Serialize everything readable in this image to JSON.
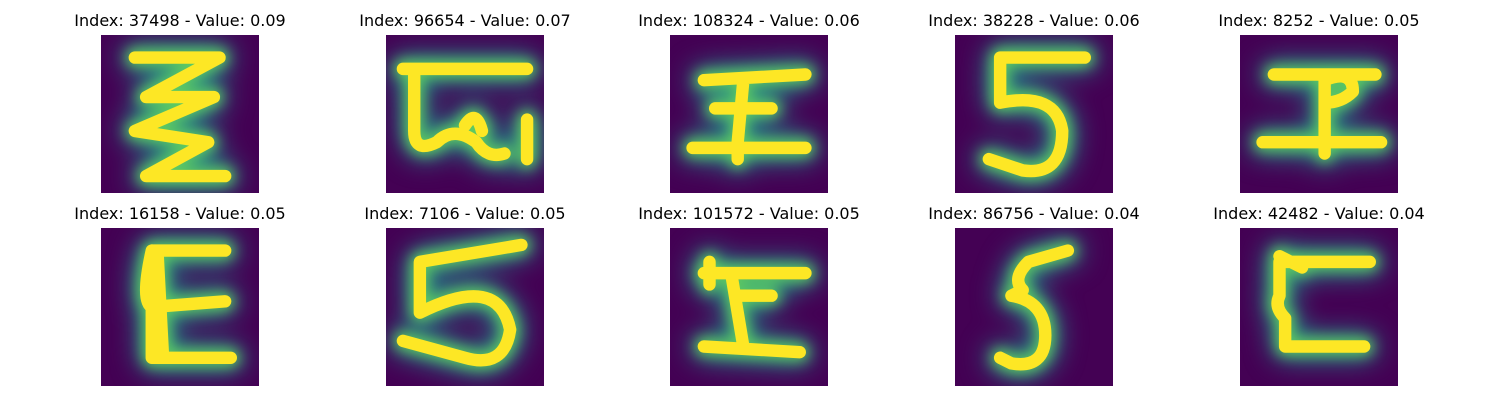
{
  "figure": {
    "colors": {
      "background": "#440154",
      "edge": "#21918c",
      "mid": "#5ec962",
      "core": "#fde725"
    },
    "tiles": [
      {
        "label": "Index: 37498 - Value: 0.09",
        "index": 37498,
        "value": 0.09,
        "glyph": "zigzag-3-like"
      },
      {
        "label": "Index: 96654 - Value: 0.07",
        "index": 96654,
        "value": 0.07,
        "glyph": "g-like-loop"
      },
      {
        "label": "Index: 108324 - Value: 0.06",
        "index": 108324,
        "value": 0.06,
        "glyph": "I-like"
      },
      {
        "label": "Index: 38228 - Value: 0.06",
        "index": 38228,
        "value": 0.06,
        "glyph": "5-like"
      },
      {
        "label": "Index: 8252 - Value: 0.05",
        "index": 8252,
        "value": 0.05,
        "glyph": "cross-like"
      },
      {
        "label": "Index: 16158 - Value: 0.05",
        "index": 16158,
        "value": 0.05,
        "glyph": "E-like"
      },
      {
        "label": "Index: 7106 - Value: 0.05",
        "index": 7106,
        "value": 0.05,
        "glyph": "5-like-wide"
      },
      {
        "label": "Index: 101572 - Value: 0.05",
        "index": 101572,
        "value": 0.05,
        "glyph": "I-like-slanted"
      },
      {
        "label": "Index: 86756 - Value: 0.04",
        "index": 86756,
        "value": 0.04,
        "glyph": "5-like-narrow"
      },
      {
        "label": "Index: 42482 - Value: 0.04",
        "index": 42482,
        "value": 0.04,
        "glyph": "C-like"
      }
    ]
  }
}
